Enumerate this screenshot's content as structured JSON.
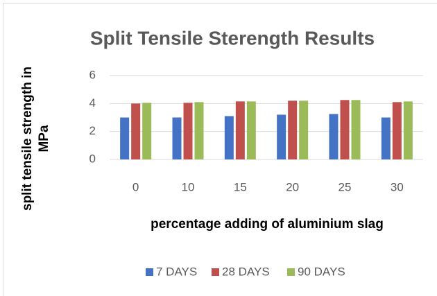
{
  "chart_data": {
    "type": "bar",
    "title": "Split Tensile Sterength Results",
    "x_label": "percentage adding of aluminium slag",
    "y_label": "split tensile strength in MPa",
    "categories": [
      "0",
      "10",
      "15",
      "20",
      "25",
      "30"
    ],
    "series": [
      {
        "name": "7 DAYS",
        "color": "#4472c4",
        "values": [
          3.0,
          3.0,
          3.1,
          3.2,
          3.25,
          3.0
        ]
      },
      {
        "name": "28 DAYS",
        "color": "#c0504d",
        "values": [
          4.0,
          4.05,
          4.15,
          4.2,
          4.25,
          4.1
        ]
      },
      {
        "name": "90 DAYS",
        "color": "#9bbb59",
        "values": [
          4.05,
          4.1,
          4.15,
          4.2,
          4.25,
          4.15
        ]
      }
    ],
    "ylim": [
      0,
      6
    ],
    "yticks": [
      0,
      2,
      4,
      6
    ],
    "grid": true,
    "legend": "bottom"
  }
}
